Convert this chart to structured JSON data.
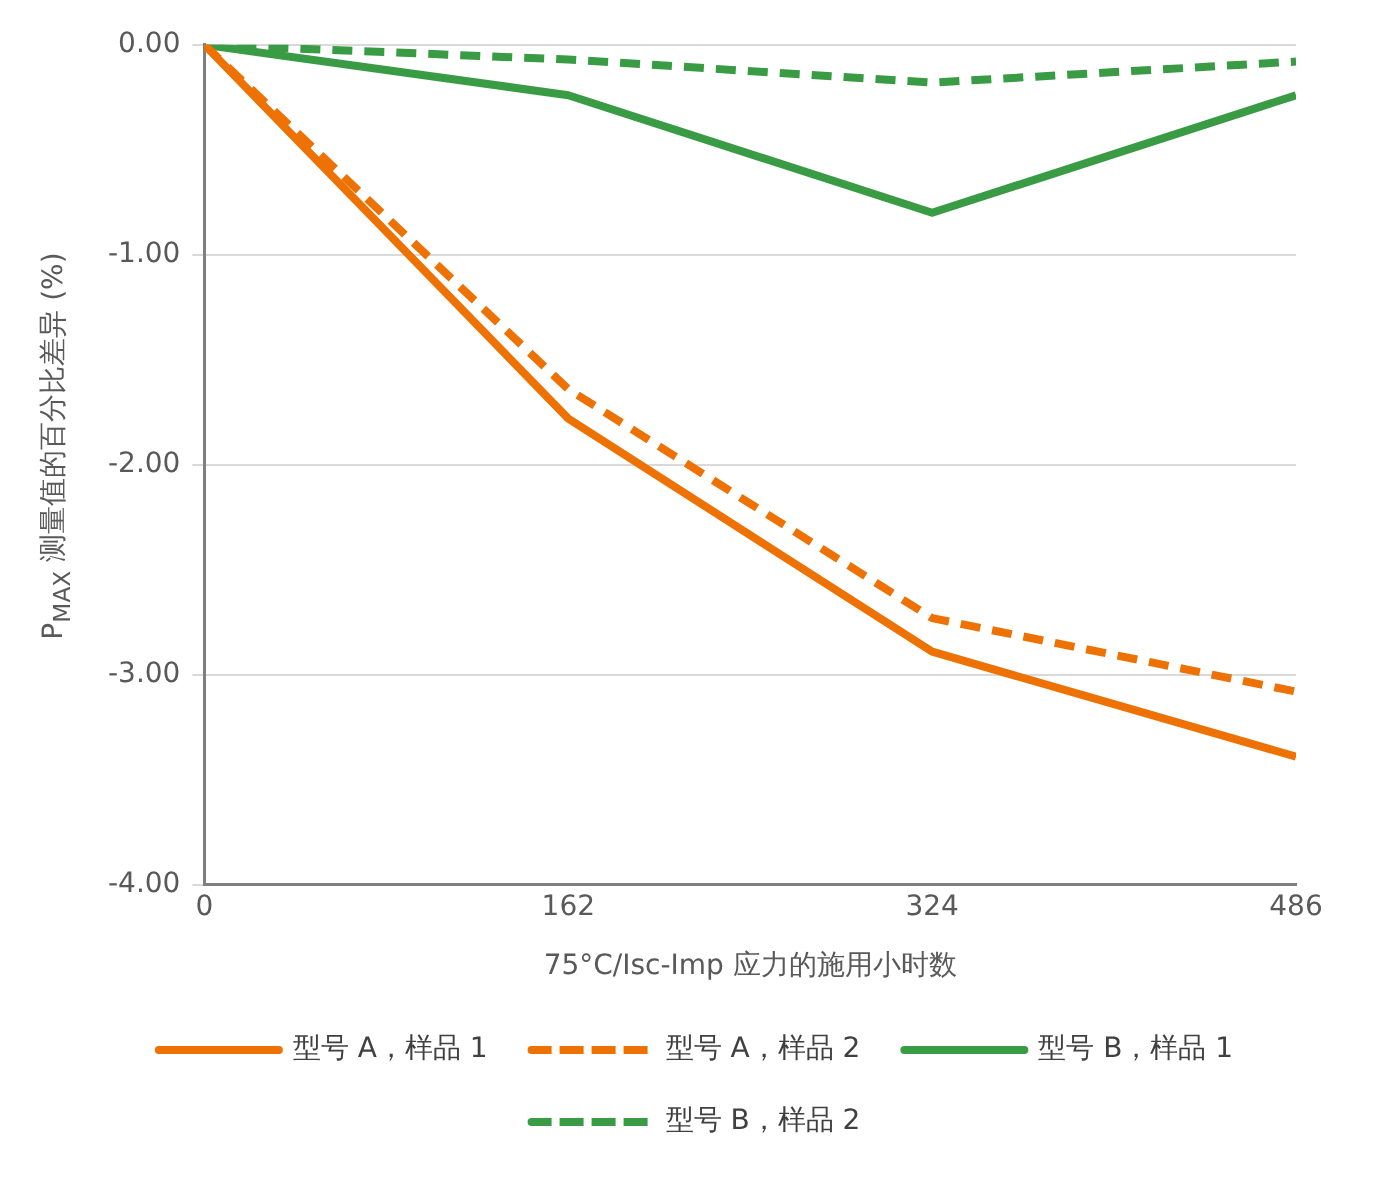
{
  "chart_data": {
    "type": "line",
    "xlabel": "75°C/Isc-Imp 应力的施用小时数",
    "ylabel": "P$_{MAX}$ 测量值的百分比差异 (%)",
    "x": [
      0,
      162,
      324,
      486
    ],
    "xlim": [
      0,
      486
    ],
    "xticks": [
      0,
      162,
      324,
      486
    ],
    "ylim": [
      -4,
      0
    ],
    "yticks": [
      {
        "value": -4,
        "label": "-4.00"
      },
      {
        "value": -3,
        "label": "-3.00"
      },
      {
        "value": -2,
        "label": "-2.00"
      },
      {
        "value": -1,
        "label": "-1.00"
      },
      {
        "value": 0,
        "label": "0.00"
      }
    ],
    "grid": "y",
    "legend": "bottom",
    "marker": "none",
    "series": [
      {
        "name": "型号 A，样品 1",
        "color": "#ee7203",
        "line_style": "solid",
        "values": [
          0,
          -1.78,
          -2.89,
          -3.39
        ]
      },
      {
        "name": "型号 A，样品 2",
        "color": "#ee7203",
        "line_style": "dashed",
        "values": [
          0,
          -1.64,
          -2.73,
          -3.08
        ]
      },
      {
        "name": "型号 B，样品 1",
        "color": "#3a9b45",
        "line_style": "solid",
        "values": [
          0,
          -0.24,
          -0.8,
          -0.24
        ]
      },
      {
        "name": "型号 B，样品 2",
        "color": "#3a9b45",
        "line_style": "dashed",
        "values": [
          0,
          -0.07,
          -0.18,
          -0.08
        ]
      }
    ]
  }
}
